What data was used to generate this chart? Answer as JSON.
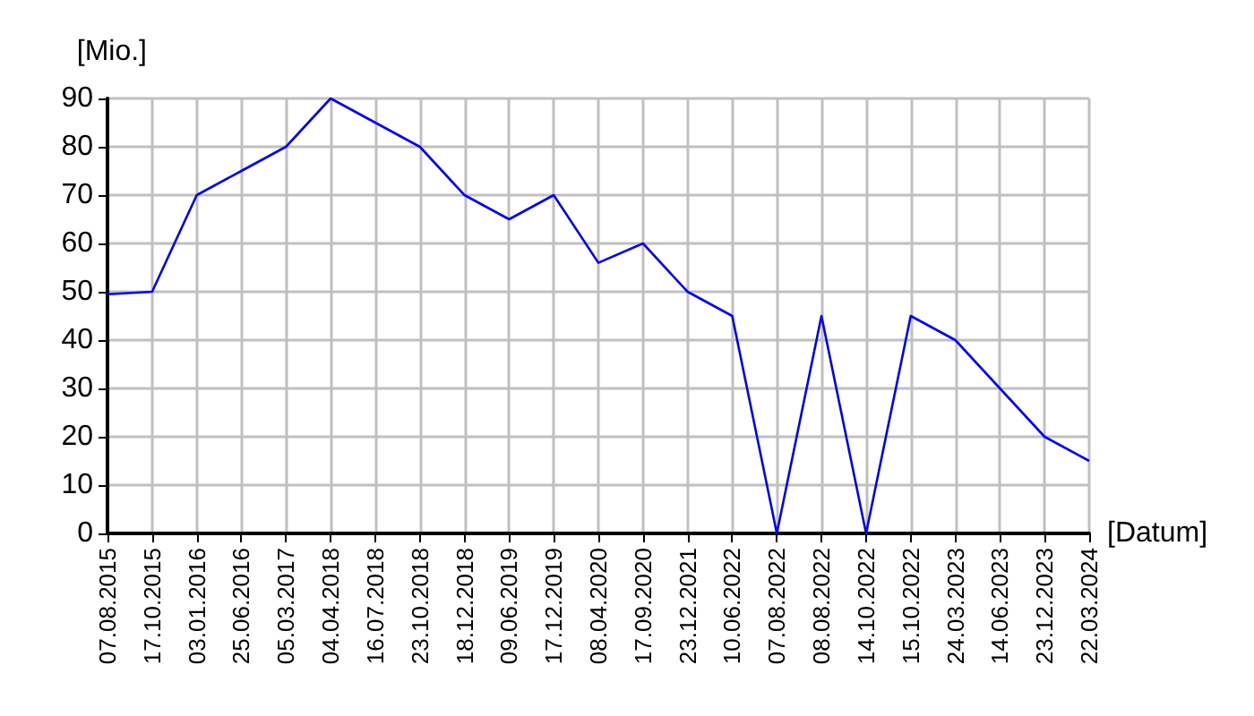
{
  "chart_data": {
    "type": "line",
    "xlabel": "[Datum]",
    "ylabel": "[Mio.]",
    "categories": [
      "07.08.2015",
      "17.10.2015",
      "03.01.2016",
      "25.06.2016",
      "05.03.2017",
      "04.04.2018",
      "16.07.2018",
      "23.10.2018",
      "18.12.2018",
      "09.06.2019",
      "17.12.2019",
      "08.04.2020",
      "17.09.2020",
      "23.12.2021",
      "10.06.2022",
      "07.08.2022",
      "08.08.2022",
      "14.10.2022",
      "15.10.2022",
      "24.03.2023",
      "14.06.2023",
      "23.12.2023",
      "22.03.2024"
    ],
    "series": [
      {
        "color": "#0000ff",
        "values": [
          49.5,
          50,
          70,
          75,
          80,
          90,
          85,
          80,
          70,
          65,
          70,
          56,
          60,
          50,
          45,
          0,
          45,
          0,
          45,
          40,
          30,
          20,
          15
        ]
      }
    ],
    "ylim": [
      0,
      90
    ],
    "yticks": [
      0,
      10,
      20,
      30,
      40,
      50,
      60,
      70,
      80,
      90
    ],
    "grid": true,
    "marker": "none",
    "line_style": "solid"
  }
}
